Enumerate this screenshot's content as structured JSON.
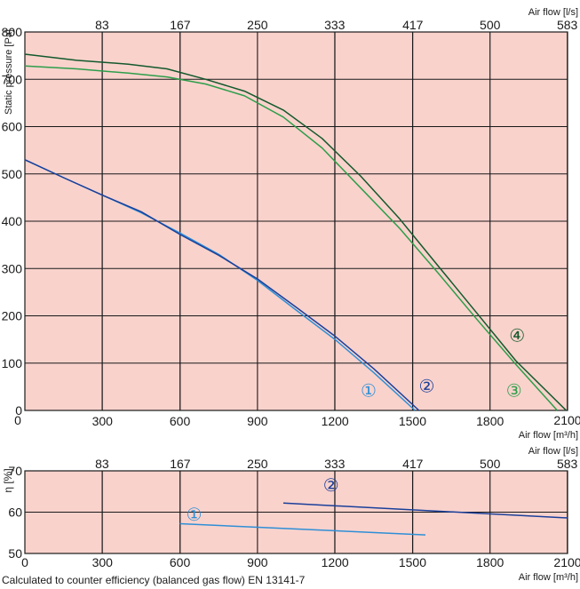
{
  "chart_data": [
    {
      "type": "line",
      "x_top_label": "Air flow [l/s]",
      "x_bottom_label": "Air flow [m³/h]",
      "ylabel": "Static pressure [Pa]",
      "xlim": [
        0,
        2100
      ],
      "ylim": [
        0,
        800
      ],
      "x_ticks": [
        "0",
        "300",
        "600",
        "900",
        "1200",
        "1500",
        "1800",
        "2100"
      ],
      "x_top_ticks": [
        "83",
        "167",
        "250",
        "333",
        "417",
        "500",
        "583"
      ],
      "y_ticks": [
        "0",
        "100",
        "200",
        "300",
        "400",
        "500",
        "600",
        "700",
        "800"
      ],
      "grid": true,
      "background": "#f9d2cc",
      "series": [
        {
          "name": "①",
          "color": "#2e8fd6",
          "x": [
            0,
            150,
            300,
            450,
            600,
            750,
            900,
            1050,
            1200,
            1350,
            1510
          ],
          "y": [
            530,
            492,
            455,
            418,
            375,
            330,
            275,
            212,
            150,
            80,
            0
          ]
        },
        {
          "name": "②",
          "color": "#1a3f9a",
          "x": [
            0,
            150,
            300,
            450,
            600,
            750,
            900,
            1050,
            1200,
            1350,
            1525
          ],
          "y": [
            530,
            492,
            455,
            420,
            372,
            328,
            278,
            218,
            157,
            88,
            0
          ]
        },
        {
          "name": "③",
          "color": "#2c9e4a",
          "x": [
            0,
            200,
            400,
            550,
            700,
            850,
            1000,
            1150,
            1300,
            1450,
            1600,
            1750,
            1900,
            2060
          ],
          "y": [
            728,
            722,
            713,
            705,
            690,
            665,
            620,
            555,
            470,
            385,
            290,
            192,
            97,
            0
          ]
        },
        {
          "name": "④",
          "color": "#13592c",
          "x": [
            0,
            200,
            400,
            550,
            700,
            850,
            1000,
            1150,
            1300,
            1450,
            1600,
            1750,
            1900,
            2095
          ],
          "y": [
            753,
            740,
            732,
            722,
            700,
            675,
            635,
            575,
            495,
            405,
            305,
            205,
            105,
            0
          ]
        }
      ]
    },
    {
      "type": "line",
      "x_top_label": "Air flow [l/s]",
      "x_bottom_label": "Air flow [m³/h]",
      "ylabel": "η [%]",
      "xlim": [
        0,
        2100
      ],
      "ylim": [
        50,
        70
      ],
      "x_ticks": [
        "0",
        "300",
        "600",
        "900",
        "1200",
        "1500",
        "1800",
        "2100"
      ],
      "x_top_ticks": [
        "83",
        "167",
        "250",
        "333",
        "417",
        "500",
        "583"
      ],
      "y_ticks": [
        "50",
        "60",
        "70"
      ],
      "grid": true,
      "background": "#f9d2cc",
      "series": [
        {
          "name": "①",
          "color": "#2e8fd6",
          "x": [
            600,
            1550
          ],
          "y": [
            57.2,
            54.5
          ]
        },
        {
          "name": "②",
          "color": "#1a3f9a",
          "x": [
            1000,
            2100
          ],
          "y": [
            62.2,
            58.6
          ]
        }
      ]
    }
  ],
  "footnote": "Calculated to counter efficiency (balanced gas flow) EN 13141-7"
}
